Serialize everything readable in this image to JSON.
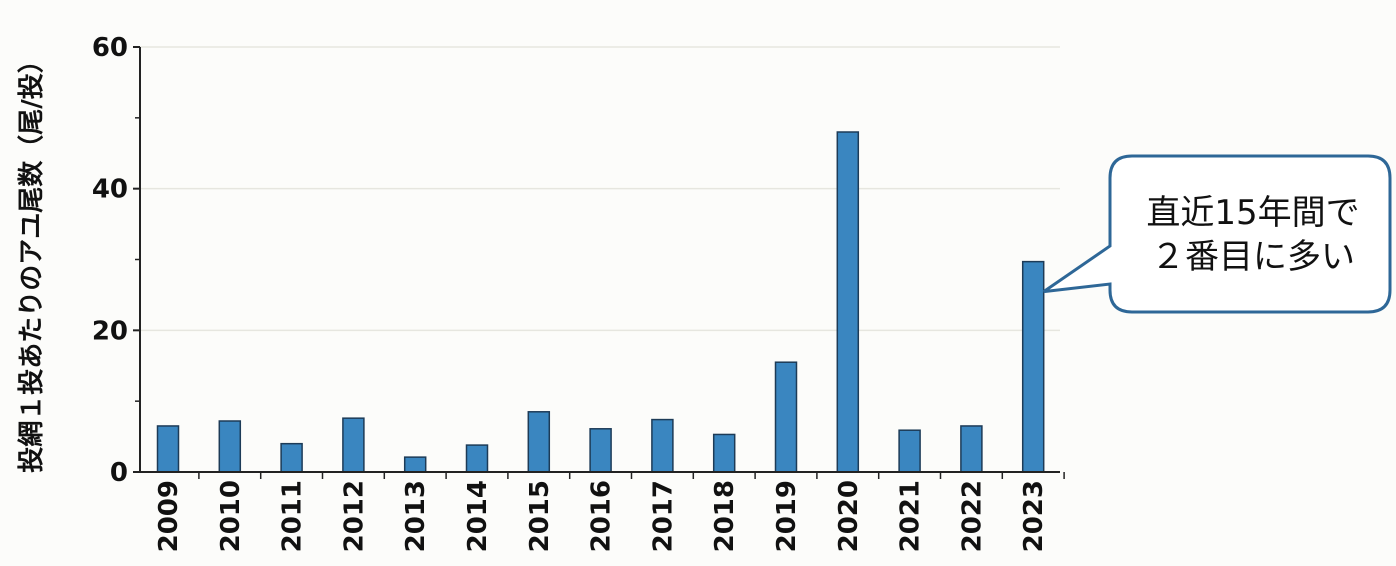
{
  "chart_data": {
    "type": "bar",
    "categories": [
      "2009",
      "2010",
      "2011",
      "2012",
      "2013",
      "2014",
      "2015",
      "2016",
      "2017",
      "2018",
      "2019",
      "2020",
      "2021",
      "2022",
      "2023"
    ],
    "values": [
      6.5,
      7.2,
      4.0,
      7.6,
      2.1,
      3.8,
      8.5,
      6.1,
      7.4,
      5.3,
      15.5,
      48.0,
      5.9,
      6.5,
      29.7
    ],
    "ylabel": "投網１投あたりのアユ尾数（尾/投）",
    "xlabel": "",
    "ylim": [
      0,
      60
    ],
    "yticks": [
      0,
      20,
      40,
      60
    ],
    "grid": true,
    "bar_color": "#3a86c0",
    "annotation": {
      "line1": "直近15年間で",
      "line2": "２番目に多い",
      "target_category": "2023",
      "border_color": "#2e6797"
    }
  }
}
